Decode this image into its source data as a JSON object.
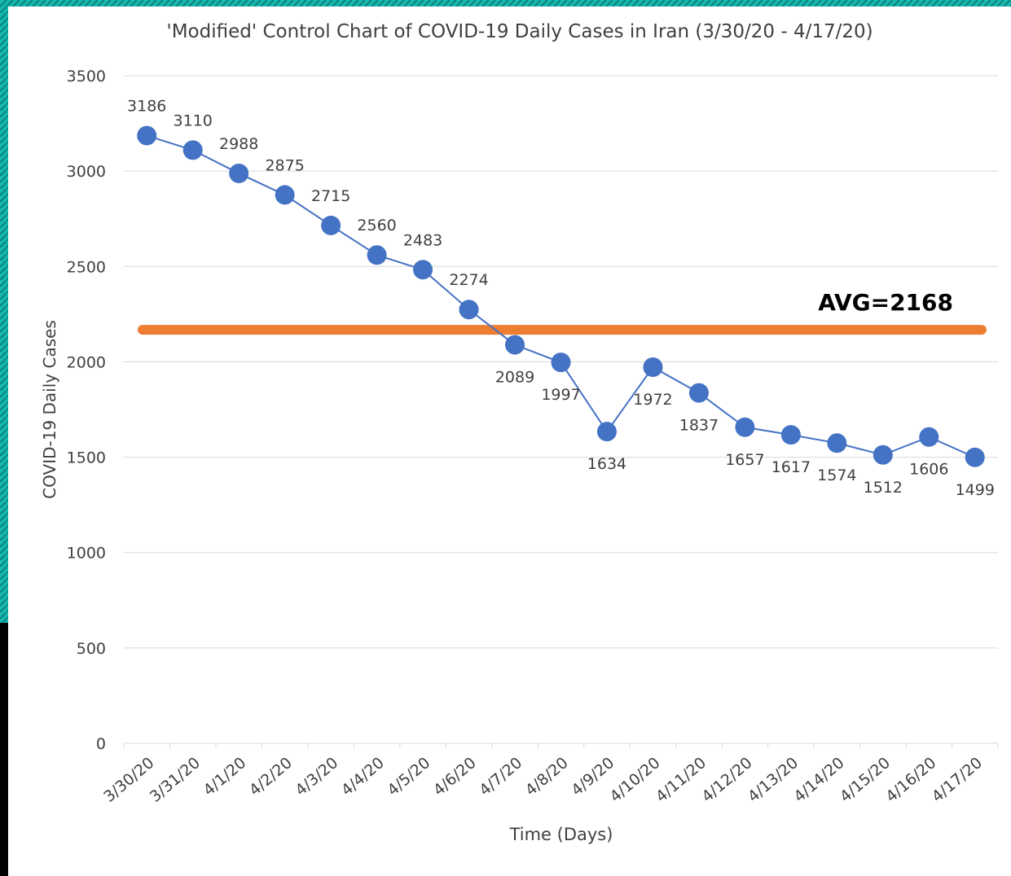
{
  "chart_data": {
    "type": "line",
    "title": "'Modified' Control Chart of COVID-19 Daily Cases in Iran (3/30/20 - 4/17/20)",
    "xlabel": "Time (Days)",
    "ylabel": "COVID-19 Daily Cases",
    "categories": [
      "3/30/20",
      "3/31/20",
      "4/1/20",
      "4/2/20",
      "4/3/20",
      "4/4/20",
      "4/5/20",
      "4/6/20",
      "4/7/20",
      "4/8/20",
      "4/9/20",
      "4/10/20",
      "4/11/20",
      "4/12/20",
      "4/13/20",
      "4/14/20",
      "4/15/20",
      "4/16/20",
      "4/17/20"
    ],
    "series": [
      {
        "name": "Daily Cases",
        "color": "#4472c4",
        "values": [
          3186,
          3110,
          2988,
          2875,
          2715,
          2560,
          2483,
          2274,
          2089,
          1997,
          1634,
          1972,
          1837,
          1657,
          1617,
          1574,
          1512,
          1606,
          1499
        ]
      }
    ],
    "average": {
      "value": 2168,
      "label": "AVG=2168",
      "color": "#ed7d31"
    },
    "ylim": [
      0,
      3500
    ],
    "yticks": [
      0,
      500,
      1000,
      1500,
      2000,
      2500,
      3000,
      3500
    ],
    "grid": true
  }
}
